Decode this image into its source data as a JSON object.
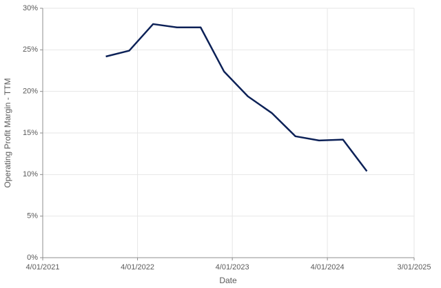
{
  "chart_data": {
    "type": "line",
    "x_label": "Date",
    "y_label": "Operating Profit Margin - TTM",
    "x": [
      "2021-11-30",
      "2022-02-28",
      "2022-05-31",
      "2022-08-31",
      "2022-11-30",
      "2023-02-28",
      "2023-05-31",
      "2023-08-31",
      "2023-11-30",
      "2024-02-29",
      "2024-05-31",
      "2024-08-31"
    ],
    "series": [
      {
        "name": "Operating Profit Margin - TTM",
        "color": "#0c2157",
        "values": [
          24.2,
          24.9,
          28.1,
          27.7,
          27.7,
          22.4,
          19.4,
          17.4,
          14.6,
          14.1,
          14.2,
          10.4
        ]
      }
    ],
    "xlim": [
      "2021-04-01",
      "2025-03-01"
    ],
    "xticks": [
      {
        "value": "2021-04-01",
        "label": "4/01/2021"
      },
      {
        "value": "2022-04-01",
        "label": "4/01/2022"
      },
      {
        "value": "2023-04-01",
        "label": "4/01/2023"
      },
      {
        "value": "2024-04-01",
        "label": "4/01/2024"
      },
      {
        "value": "2025-03-01",
        "label": "3/01/2025"
      }
    ],
    "ylim": [
      0,
      30
    ],
    "yticks": [
      {
        "value": 0,
        "label": "0%"
      },
      {
        "value": 5,
        "label": "5%"
      },
      {
        "value": 10,
        "label": "10%"
      },
      {
        "value": 15,
        "label": "15%"
      },
      {
        "value": 20,
        "label": "20%"
      },
      {
        "value": 25,
        "label": "25%"
      },
      {
        "value": 30,
        "label": "30%"
      }
    ],
    "grid": true
  }
}
